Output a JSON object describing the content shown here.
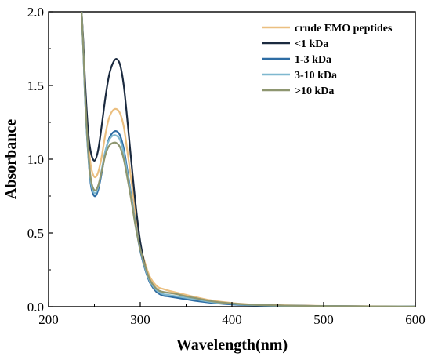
{
  "chart_data": {
    "type": "line",
    "title": "",
    "xlabel": "Wavelength(nm)",
    "ylabel": "Absorbance",
    "xlim": [
      200,
      600
    ],
    "ylim": [
      0.0,
      2.0
    ],
    "x_ticks": [
      200,
      300,
      400,
      500,
      600
    ],
    "x_tick_labels": [
      "200",
      "300",
      "400",
      "500",
      "600"
    ],
    "y_ticks": [
      0.0,
      0.5,
      1.0,
      1.5,
      2.0
    ],
    "y_tick_labels": [
      "0.0",
      "0.5",
      "1.0",
      "1.5",
      "2.0"
    ],
    "grid": false,
    "legend_position": "top-right",
    "x": [
      236,
      238,
      240,
      243,
      246,
      250,
      254,
      258,
      262,
      266,
      270,
      274,
      278,
      282,
      286,
      290,
      295,
      300,
      305,
      310,
      315,
      320,
      325,
      330,
      340,
      350,
      360,
      380,
      400,
      420,
      450,
      500,
      550,
      600
    ],
    "series": [
      {
        "name": "crude EMO peptides",
        "color": "#ebbf80",
        "values": [
          2.0,
          1.75,
          1.45,
          1.15,
          0.96,
          0.88,
          0.91,
          1.02,
          1.17,
          1.28,
          1.33,
          1.34,
          1.31,
          1.22,
          1.05,
          0.87,
          0.62,
          0.42,
          0.3,
          0.21,
          0.16,
          0.13,
          0.12,
          0.11,
          0.095,
          0.08,
          0.065,
          0.04,
          0.025,
          0.015,
          0.01,
          0.005,
          0.003,
          0.002
        ]
      },
      {
        "name": "<1 kDa",
        "color": "#1b2a3f",
        "values": [
          2.0,
          1.78,
          1.5,
          1.2,
          1.05,
          0.99,
          1.06,
          1.23,
          1.42,
          1.57,
          1.65,
          1.68,
          1.64,
          1.5,
          1.26,
          1.0,
          0.69,
          0.44,
          0.28,
          0.18,
          0.12,
          0.09,
          0.08,
          0.075,
          0.065,
          0.055,
          0.045,
          0.03,
          0.02,
          0.012,
          0.008,
          0.004,
          0.002,
          0.002
        ]
      },
      {
        "name": "1-3 kDa",
        "color": "#2e6da4",
        "values": [
          2.0,
          1.72,
          1.38,
          1.05,
          0.83,
          0.75,
          0.79,
          0.91,
          1.05,
          1.14,
          1.18,
          1.19,
          1.16,
          1.07,
          0.92,
          0.76,
          0.55,
          0.38,
          0.26,
          0.17,
          0.12,
          0.09,
          0.075,
          0.07,
          0.06,
          0.05,
          0.04,
          0.025,
          0.015,
          0.01,
          0.006,
          0.003,
          0.002,
          0.001
        ]
      },
      {
        "name": "3-10 kDa",
        "color": "#7fb8cf",
        "values": [
          2.0,
          1.72,
          1.39,
          1.06,
          0.85,
          0.77,
          0.81,
          0.93,
          1.06,
          1.13,
          1.16,
          1.16,
          1.13,
          1.04,
          0.9,
          0.75,
          0.55,
          0.39,
          0.27,
          0.18,
          0.13,
          0.1,
          0.085,
          0.08,
          0.07,
          0.06,
          0.05,
          0.03,
          0.02,
          0.012,
          0.007,
          0.004,
          0.002,
          0.001
        ]
      },
      {
        "name": ">10 kDa",
        "color": "#8e9670",
        "values": [
          2.0,
          1.73,
          1.41,
          1.08,
          0.87,
          0.79,
          0.82,
          0.92,
          1.03,
          1.09,
          1.11,
          1.11,
          1.08,
          1.0,
          0.87,
          0.73,
          0.54,
          0.39,
          0.28,
          0.19,
          0.14,
          0.11,
          0.1,
          0.095,
          0.085,
          0.07,
          0.058,
          0.035,
          0.022,
          0.014,
          0.008,
          0.004,
          0.002,
          0.001
        ]
      }
    ]
  }
}
